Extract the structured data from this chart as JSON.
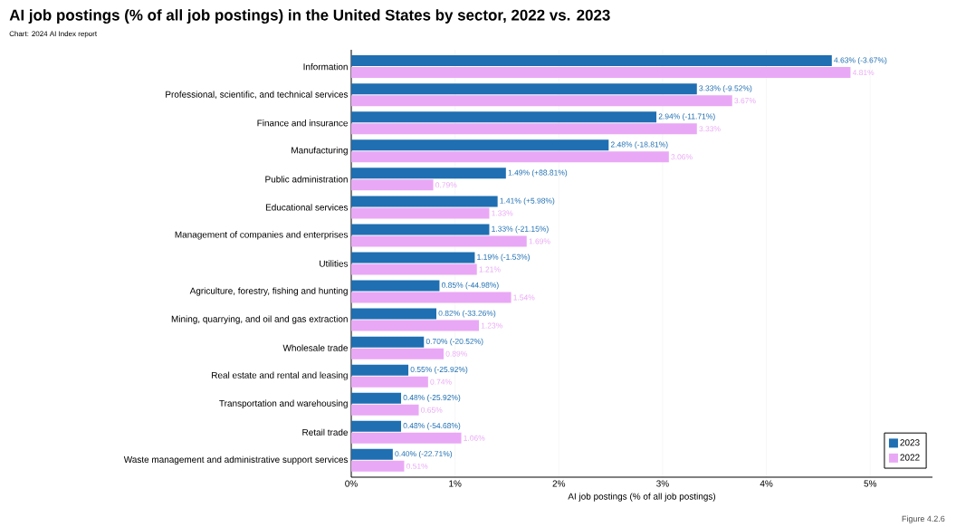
{
  "chart_data": {
    "type": "bar",
    "orientation": "horizontal",
    "title": "AI job postings (% of all job postings) in the United States by sector, 2022 vs. 2023",
    "subtitle": "Chart: 2024 AI Index report",
    "xlabel": "AI job postings (% of all job postings)",
    "annotations": [
      "Figure 4.2.6"
    ],
    "categories": [
      "Information",
      "Professional, scientific, and technical services",
      "Finance and insurance",
      "Manufacturing",
      "Public administration",
      "Educational services",
      "Management of companies and enterprises",
      "Utilities",
      "Agriculture, forestry, fishing and hunting",
      "Mining, quarrying, and oil and gas extraction",
      "Wholesale trade",
      "Real estate and rental and leasing",
      "Transportation and warehousing",
      "Retail trade",
      "Waste management and administrative support services"
    ],
    "series": [
      {
        "name": "2023",
        "color": "#1f6fb2",
        "values": [
          4.63,
          3.33,
          2.94,
          2.48,
          1.49,
          1.41,
          1.33,
          1.19,
          0.85,
          0.82,
          0.7,
          0.55,
          0.48,
          0.48,
          0.4
        ],
        "value_labels": [
          "4.63% (-3.67%)",
          "3.33% (-9.52%)",
          "2.94% (-11.71%)",
          "2.48% (-18.81%)",
          "1.49% (+88.81%)",
          "1.41% (+5.98%)",
          "1.33% (-21.15%)",
          "1.19% (-1.53%)",
          "0.85% (-44.98%)",
          "0.82% (-33.26%)",
          "0.70% (-20.52%)",
          "0.55% (-25.92%)",
          "0.48% (-25.92%)",
          "0.48% (-54.68%)",
          "0.40% (-22.71%)"
        ]
      },
      {
        "name": "2022",
        "color": "#e9a8f5",
        "values": [
          4.81,
          3.67,
          3.33,
          3.06,
          0.79,
          1.33,
          1.69,
          1.21,
          1.54,
          1.23,
          0.89,
          0.74,
          0.65,
          1.06,
          0.51
        ],
        "value_labels": [
          "4.81%",
          "3.67%",
          "3.33%",
          "3.06%",
          "0.79%",
          "1.33%",
          "1.69%",
          "1.21%",
          "1.54%",
          "1.23%",
          "0.89%",
          "0.74%",
          "0.65%",
          "1.06%",
          "0.51%"
        ]
      }
    ],
    "xlim": [
      0,
      5.6
    ],
    "xticks": [
      {
        "value": 0,
        "label": "0%"
      },
      {
        "value": 1,
        "label": "1%"
      },
      {
        "value": 2,
        "label": "2%"
      },
      {
        "value": 3,
        "label": "3%"
      },
      {
        "value": 4,
        "label": "4%"
      },
      {
        "value": 5,
        "label": "5%"
      }
    ],
    "grid": "x",
    "legend": "bottom right"
  }
}
